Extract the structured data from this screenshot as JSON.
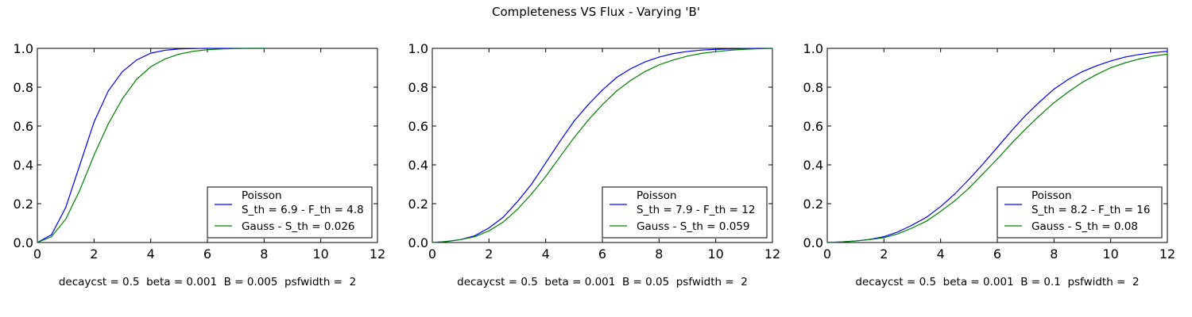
{
  "figure_title": "Completeness VS Flux - Varying 'B'",
  "chart_data": [
    {
      "type": "line",
      "title": "",
      "xlabel": "decaycst = 0.5  beta = 0.001  B = 0.005  psfwidth =  2",
      "ylabel": "",
      "xlim": [
        0,
        12
      ],
      "ylim": [
        0,
        1.0
      ],
      "xticks": [
        "0",
        "2",
        "4",
        "6",
        "8",
        "10",
        "12"
      ],
      "yticks": [
        "0.0",
        "0.2",
        "0.4",
        "0.6",
        "0.8",
        "1.0"
      ],
      "grid": false,
      "legend_position": "lower-right",
      "legend": [
        "Poisson\nS_th = 6.9 - F_th = 4.8",
        "Gauss - S_th = 0.026"
      ],
      "x": [
        0,
        0.5,
        1,
        1.5,
        2,
        2.5,
        3,
        3.5,
        4,
        4.5,
        5,
        5.5,
        6,
        6.5,
        7,
        7.5,
        8
      ],
      "series": [
        {
          "name": "Poisson\nS_th = 6.9 - F_th = 4.8",
          "color": "#0000ff",
          "values": [
            0.0,
            0.04,
            0.18,
            0.4,
            0.62,
            0.78,
            0.88,
            0.94,
            0.975,
            0.99,
            0.997,
            0.999,
            1.0,
            1.0,
            1.0,
            1.0,
            1.0
          ]
        },
        {
          "name": "Gauss - S_th = 0.026",
          "color": "#008000",
          "values": [
            0.0,
            0.03,
            0.12,
            0.27,
            0.45,
            0.61,
            0.74,
            0.84,
            0.905,
            0.945,
            0.97,
            0.985,
            0.993,
            0.997,
            0.999,
            1.0,
            1.0
          ]
        }
      ]
    },
    {
      "type": "line",
      "title": "",
      "xlabel": "decaycst = 0.5  beta = 0.001  B = 0.05  psfwidth =  2",
      "ylabel": "",
      "xlim": [
        0,
        12
      ],
      "ylim": [
        0,
        1.0
      ],
      "xticks": [
        "0",
        "2",
        "4",
        "6",
        "8",
        "10",
        "12"
      ],
      "yticks": [
        "0.0",
        "0.2",
        "0.4",
        "0.6",
        "0.8",
        "1.0"
      ],
      "grid": false,
      "legend_position": "lower-right",
      "legend": [
        "Poisson\nS_th = 7.9 - F_th = 12",
        "Gauss - S_th = 0.059"
      ],
      "x": [
        0,
        0.5,
        1,
        1.5,
        2,
        2.5,
        3,
        3.5,
        4,
        4.5,
        5,
        5.5,
        6,
        6.5,
        7,
        7.5,
        8,
        8.5,
        9,
        9.5,
        10,
        10.5,
        11,
        11.5,
        12
      ],
      "series": [
        {
          "name": "Poisson\nS_th = 7.9 - F_th = 12",
          "color": "#0000ff",
          "values": [
            0.0,
            0.005,
            0.015,
            0.035,
            0.075,
            0.13,
            0.21,
            0.3,
            0.41,
            0.52,
            0.625,
            0.71,
            0.785,
            0.85,
            0.895,
            0.93,
            0.955,
            0.973,
            0.984,
            0.991,
            0.995,
            0.997,
            0.999,
            1.0,
            1.0
          ]
        },
        {
          "name": "Gauss - S_th = 0.059",
          "color": "#008000",
          "values": [
            0.0,
            0.005,
            0.015,
            0.03,
            0.06,
            0.105,
            0.17,
            0.25,
            0.34,
            0.44,
            0.54,
            0.63,
            0.71,
            0.78,
            0.835,
            0.88,
            0.915,
            0.94,
            0.96,
            0.974,
            0.983,
            0.99,
            0.995,
            0.998,
            1.0
          ]
        }
      ]
    },
    {
      "type": "line",
      "title": "",
      "xlabel": "decaycst = 0.5  beta = 0.001  B = 0.1  psfwidth =  2",
      "ylabel": "",
      "xlim": [
        0,
        12
      ],
      "ylim": [
        0,
        1.0
      ],
      "xticks": [
        "0",
        "2",
        "4",
        "6",
        "8",
        "10",
        "12"
      ],
      "yticks": [
        "0.0",
        "0.2",
        "0.4",
        "0.6",
        "0.8",
        "1.0"
      ],
      "grid": false,
      "legend_position": "lower-right",
      "legend": [
        "Poisson\nS_th = 8.2 - F_th = 16",
        "Gauss - S_th = 0.08"
      ],
      "x": [
        0,
        0.5,
        1,
        1.5,
        2,
        2.5,
        3,
        3.5,
        4,
        4.5,
        5,
        5.5,
        6,
        6.5,
        7,
        7.5,
        8,
        8.5,
        9,
        9.5,
        10,
        10.5,
        11,
        11.5,
        12
      ],
      "series": [
        {
          "name": "Poisson\nS_th = 8.2 - F_th = 16",
          "color": "#0000ff",
          "values": [
            0.0,
            0.003,
            0.008,
            0.016,
            0.03,
            0.055,
            0.09,
            0.13,
            0.185,
            0.25,
            0.325,
            0.405,
            0.49,
            0.575,
            0.655,
            0.725,
            0.79,
            0.84,
            0.88,
            0.91,
            0.935,
            0.955,
            0.968,
            0.978,
            0.985
          ]
        },
        {
          "name": "Gauss - S_th = 0.08",
          "color": "#008000",
          "values": [
            0.0,
            0.003,
            0.008,
            0.015,
            0.025,
            0.045,
            0.075,
            0.11,
            0.16,
            0.215,
            0.28,
            0.355,
            0.43,
            0.51,
            0.585,
            0.655,
            0.72,
            0.775,
            0.825,
            0.865,
            0.9,
            0.925,
            0.945,
            0.96,
            0.97
          ]
        }
      ]
    }
  ]
}
